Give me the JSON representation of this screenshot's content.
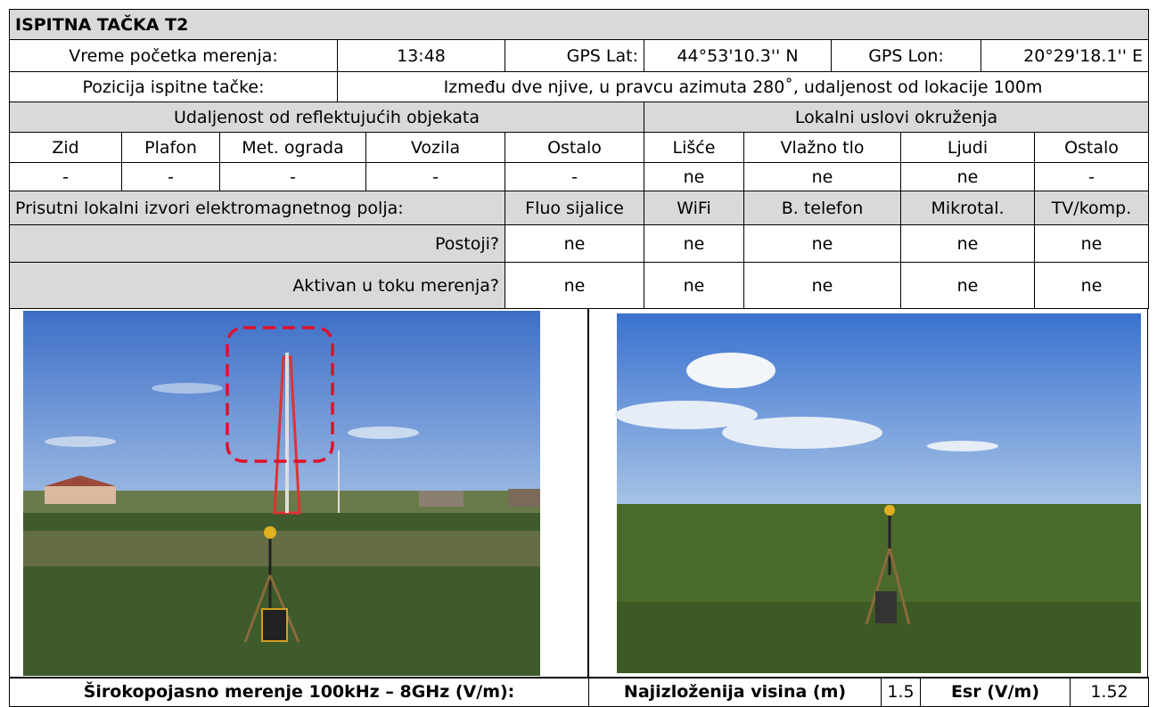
{
  "header": {
    "title": "ISPITNA TAČKA T2"
  },
  "info": {
    "start_time_label": "Vreme početka merenja:",
    "start_time": "13:48",
    "gps_lat_label": "GPS Lat:",
    "gps_lat": "44°53'10.3'' N",
    "gps_lon_label": "GPS Lon:",
    "gps_lon": "20°29'18.1'' E",
    "position_label": "Pozicija ispitne tačke:",
    "position": "Između dve njive, u pravcu  azimuta 280˚, udaljenost od lokacije 100m"
  },
  "reflective": {
    "title": "Udaljenost od reflektujućih objekata",
    "columns": [
      "Zid",
      "Plafon",
      "Met. ograda",
      "Vozila",
      "Ostalo"
    ],
    "values": [
      "-",
      "-",
      "-",
      "-",
      "-"
    ]
  },
  "environment": {
    "title": "Lokalni uslovi okruženja",
    "columns": [
      "Lišće",
      "Vlažno tlo",
      "Ljudi",
      "Ostalo"
    ],
    "values": [
      "ne",
      "ne",
      "ne",
      "-"
    ]
  },
  "sources": {
    "title": "Prisutni lokalni izvori elektromagnetnog polja:",
    "columns": [
      "Fluo sijalice",
      "WiFi",
      "B. telefon",
      "Mikrotal.",
      "TV/komp."
    ],
    "rows": [
      {
        "label": "Postoji?",
        "values": [
          "ne",
          "ne",
          "ne",
          "ne",
          "ne"
        ]
      },
      {
        "label": "Aktivan u toku merenja?",
        "values": [
          "ne",
          "ne",
          "ne",
          "ne",
          "ne"
        ]
      }
    ]
  },
  "measurement": {
    "label": "Širokopojasno merenje 100kHz – 8GHz (V/m):",
    "height_label": "Najizloženija visina (m)",
    "height": 1.5,
    "esr_label": "Esr (V/m)",
    "esr": 1.52
  }
}
